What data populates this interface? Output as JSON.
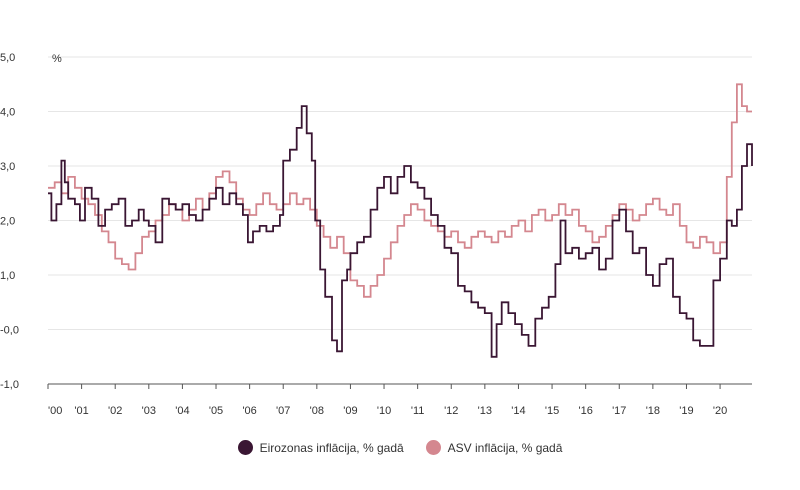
{
  "chart_data": {
    "type": "line",
    "title": "",
    "xlabel": "",
    "ylabel": "%",
    "ylim": [
      -1.0,
      5.0
    ],
    "xlim": [
      2000.0,
      2020.95
    ],
    "y_ticks": [
      -1.0,
      0.0,
      1.0,
      2.0,
      3.0,
      4.0,
      5.0
    ],
    "y_tick_labels": [
      "-1,0",
      "-0,0",
      "1,0",
      "2,0",
      "3,0",
      "4,0",
      "5,0"
    ],
    "x_ticks": [
      2000,
      2001,
      2002,
      2003,
      2004,
      2005,
      2006,
      2007,
      2008,
      2009,
      2010,
      2011,
      2012,
      2013,
      2014,
      2015,
      2016,
      2017,
      2018,
      2019,
      2020
    ],
    "x_tick_labels": [
      "'00",
      "'01",
      "'02",
      "'03",
      "'04",
      "'05",
      "'06",
      "'07",
      "'08",
      "'09",
      "'10",
      "'11",
      "'12",
      "'13",
      "'14",
      "'15",
      "'16",
      "'17",
      "'18",
      "'19",
      "'20"
    ],
    "grid": true,
    "legend_position": "bottom-center",
    "series": [
      {
        "name": "Eirozonas inflācija, % gadā",
        "color": "#3a1633",
        "points": [
          [
            2000.0,
            2.5
          ],
          [
            2000.1,
            2.0
          ],
          [
            2000.25,
            2.3
          ],
          [
            2000.4,
            3.1
          ],
          [
            2000.5,
            2.7
          ],
          [
            2000.6,
            2.4
          ],
          [
            2000.8,
            2.3
          ],
          [
            2000.95,
            2.0
          ],
          [
            2001.1,
            2.6
          ],
          [
            2001.3,
            2.4
          ],
          [
            2001.5,
            1.9
          ],
          [
            2001.7,
            2.2
          ],
          [
            2001.9,
            2.3
          ],
          [
            2002.1,
            2.4
          ],
          [
            2002.3,
            1.9
          ],
          [
            2002.5,
            2.0
          ],
          [
            2002.7,
            2.2
          ],
          [
            2002.85,
            2.0
          ],
          [
            2003.0,
            1.9
          ],
          [
            2003.2,
            1.6
          ],
          [
            2003.4,
            2.4
          ],
          [
            2003.6,
            2.3
          ],
          [
            2003.8,
            2.2
          ],
          [
            2004.0,
            2.3
          ],
          [
            2004.2,
            2.1
          ],
          [
            2004.4,
            2.0
          ],
          [
            2004.6,
            2.2
          ],
          [
            2004.8,
            2.4
          ],
          [
            2005.0,
            2.6
          ],
          [
            2005.2,
            2.3
          ],
          [
            2005.4,
            2.5
          ],
          [
            2005.6,
            2.3
          ],
          [
            2005.8,
            2.1
          ],
          [
            2005.95,
            1.6
          ],
          [
            2006.1,
            1.8
          ],
          [
            2006.3,
            1.9
          ],
          [
            2006.5,
            1.8
          ],
          [
            2006.7,
            1.9
          ],
          [
            2006.9,
            2.1
          ],
          [
            2007.0,
            3.1
          ],
          [
            2007.2,
            3.3
          ],
          [
            2007.4,
            3.7
          ],
          [
            2007.55,
            4.1
          ],
          [
            2007.7,
            3.6
          ],
          [
            2007.85,
            3.1
          ],
          [
            2007.95,
            2.0
          ],
          [
            2008.1,
            1.1
          ],
          [
            2008.25,
            0.6
          ],
          [
            2008.45,
            -0.2
          ],
          [
            2008.6,
            -0.4
          ],
          [
            2008.75,
            0.9
          ],
          [
            2008.9,
            1.1
          ],
          [
            2009.0,
            1.4
          ],
          [
            2009.2,
            1.6
          ],
          [
            2009.4,
            1.7
          ],
          [
            2009.6,
            2.2
          ],
          [
            2009.8,
            2.6
          ],
          [
            2010.0,
            2.8
          ],
          [
            2010.2,
            2.5
          ],
          [
            2010.4,
            2.8
          ],
          [
            2010.6,
            3.0
          ],
          [
            2010.8,
            2.7
          ],
          [
            2011.0,
            2.6
          ],
          [
            2011.2,
            2.4
          ],
          [
            2011.4,
            2.1
          ],
          [
            2011.6,
            1.9
          ],
          [
            2011.8,
            1.5
          ],
          [
            2012.0,
            1.4
          ],
          [
            2012.2,
            0.8
          ],
          [
            2012.4,
            0.7
          ],
          [
            2012.6,
            0.5
          ],
          [
            2012.8,
            0.4
          ],
          [
            2013.0,
            0.3
          ],
          [
            2013.2,
            -0.5
          ],
          [
            2013.35,
            0.1
          ],
          [
            2013.5,
            0.5
          ],
          [
            2013.7,
            0.3
          ],
          [
            2013.9,
            0.1
          ],
          [
            2014.1,
            -0.1
          ],
          [
            2014.3,
            -0.3
          ],
          [
            2014.5,
            0.2
          ],
          [
            2014.7,
            0.4
          ],
          [
            2014.9,
            0.6
          ],
          [
            2015.1,
            1.2
          ],
          [
            2015.25,
            2.0
          ],
          [
            2015.4,
            1.4
          ],
          [
            2015.6,
            1.5
          ],
          [
            2015.8,
            1.3
          ],
          [
            2016.0,
            1.4
          ],
          [
            2016.2,
            1.5
          ],
          [
            2016.4,
            1.1
          ],
          [
            2016.6,
            1.3
          ],
          [
            2016.8,
            2.0
          ],
          [
            2017.0,
            2.2
          ],
          [
            2017.2,
            1.8
          ],
          [
            2017.4,
            1.4
          ],
          [
            2017.6,
            1.5
          ],
          [
            2017.8,
            1.0
          ],
          [
            2018.0,
            0.8
          ],
          [
            2018.2,
            1.2
          ],
          [
            2018.4,
            1.3
          ],
          [
            2018.6,
            0.6
          ],
          [
            2018.8,
            0.3
          ],
          [
            2019.0,
            0.2
          ],
          [
            2019.2,
            -0.2
          ],
          [
            2019.4,
            -0.3
          ],
          [
            2019.6,
            -0.3
          ],
          [
            2019.8,
            0.9
          ],
          [
            2020.0,
            1.3
          ],
          [
            2020.2,
            2.0
          ],
          [
            2020.35,
            1.9
          ],
          [
            2020.5,
            2.2
          ],
          [
            2020.65,
            3.0
          ],
          [
            2020.8,
            3.4
          ],
          [
            2020.95,
            3.0
          ]
        ]
      },
      {
        "name": "ASV inflācija, % gadā",
        "color": "#d4878f",
        "points": [
          [
            2000.0,
            2.6
          ],
          [
            2000.2,
            2.7
          ],
          [
            2000.4,
            2.5
          ],
          [
            2000.6,
            2.8
          ],
          [
            2000.8,
            2.6
          ],
          [
            2001.0,
            2.4
          ],
          [
            2001.2,
            2.3
          ],
          [
            2001.4,
            2.1
          ],
          [
            2001.6,
            1.8
          ],
          [
            2001.8,
            1.6
          ],
          [
            2002.0,
            1.3
          ],
          [
            2002.2,
            1.2
          ],
          [
            2002.4,
            1.1
          ],
          [
            2002.6,
            1.4
          ],
          [
            2002.8,
            1.7
          ],
          [
            2003.0,
            1.8
          ],
          [
            2003.2,
            2.0
          ],
          [
            2003.4,
            2.1
          ],
          [
            2003.6,
            2.3
          ],
          [
            2003.8,
            2.2
          ],
          [
            2004.0,
            2.0
          ],
          [
            2004.2,
            2.2
          ],
          [
            2004.4,
            2.4
          ],
          [
            2004.6,
            2.2
          ],
          [
            2004.8,
            2.5
          ],
          [
            2005.0,
            2.8
          ],
          [
            2005.2,
            2.9
          ],
          [
            2005.4,
            2.7
          ],
          [
            2005.6,
            2.4
          ],
          [
            2005.8,
            2.2
          ],
          [
            2006.0,
            2.1
          ],
          [
            2006.2,
            2.3
          ],
          [
            2006.4,
            2.5
          ],
          [
            2006.6,
            2.3
          ],
          [
            2006.8,
            2.2
          ],
          [
            2007.0,
            2.3
          ],
          [
            2007.2,
            2.5
          ],
          [
            2007.4,
            2.3
          ],
          [
            2007.6,
            2.4
          ],
          [
            2007.8,
            2.2
          ],
          [
            2008.0,
            1.9
          ],
          [
            2008.2,
            1.7
          ],
          [
            2008.4,
            1.5
          ],
          [
            2008.6,
            1.7
          ],
          [
            2008.8,
            1.4
          ],
          [
            2009.0,
            0.9
          ],
          [
            2009.2,
            0.8
          ],
          [
            2009.4,
            0.6
          ],
          [
            2009.6,
            0.8
          ],
          [
            2009.8,
            1.0
          ],
          [
            2010.0,
            1.3
          ],
          [
            2010.2,
            1.6
          ],
          [
            2010.4,
            1.9
          ],
          [
            2010.6,
            2.1
          ],
          [
            2010.8,
            2.3
          ],
          [
            2011.0,
            2.2
          ],
          [
            2011.2,
            2.0
          ],
          [
            2011.4,
            1.9
          ],
          [
            2011.6,
            1.8
          ],
          [
            2011.8,
            1.7
          ],
          [
            2012.0,
            1.8
          ],
          [
            2012.2,
            1.6
          ],
          [
            2012.4,
            1.5
          ],
          [
            2012.6,
            1.7
          ],
          [
            2012.8,
            1.8
          ],
          [
            2013.0,
            1.7
          ],
          [
            2013.2,
            1.6
          ],
          [
            2013.4,
            1.8
          ],
          [
            2013.6,
            1.7
          ],
          [
            2013.8,
            1.9
          ],
          [
            2014.0,
            2.0
          ],
          [
            2014.2,
            1.8
          ],
          [
            2014.4,
            2.1
          ],
          [
            2014.6,
            2.2
          ],
          [
            2014.8,
            2.0
          ],
          [
            2015.0,
            2.1
          ],
          [
            2015.2,
            2.3
          ],
          [
            2015.4,
            2.1
          ],
          [
            2015.6,
            2.2
          ],
          [
            2015.8,
            1.9
          ],
          [
            2016.0,
            1.8
          ],
          [
            2016.2,
            1.6
          ],
          [
            2016.4,
            1.7
          ],
          [
            2016.6,
            1.9
          ],
          [
            2016.8,
            2.1
          ],
          [
            2017.0,
            2.3
          ],
          [
            2017.2,
            2.2
          ],
          [
            2017.4,
            2.0
          ],
          [
            2017.6,
            2.1
          ],
          [
            2017.8,
            2.3
          ],
          [
            2018.0,
            2.4
          ],
          [
            2018.2,
            2.2
          ],
          [
            2018.4,
            2.1
          ],
          [
            2018.6,
            2.3
          ],
          [
            2018.8,
            1.9
          ],
          [
            2019.0,
            1.6
          ],
          [
            2019.2,
            1.5
          ],
          [
            2019.4,
            1.7
          ],
          [
            2019.6,
            1.6
          ],
          [
            2019.8,
            1.4
          ],
          [
            2020.0,
            1.6
          ],
          [
            2020.2,
            2.8
          ],
          [
            2020.35,
            3.8
          ],
          [
            2020.5,
            4.5
          ],
          [
            2020.65,
            4.1
          ],
          [
            2020.8,
            4.0
          ],
          [
            2020.95,
            4.0
          ]
        ]
      }
    ]
  }
}
